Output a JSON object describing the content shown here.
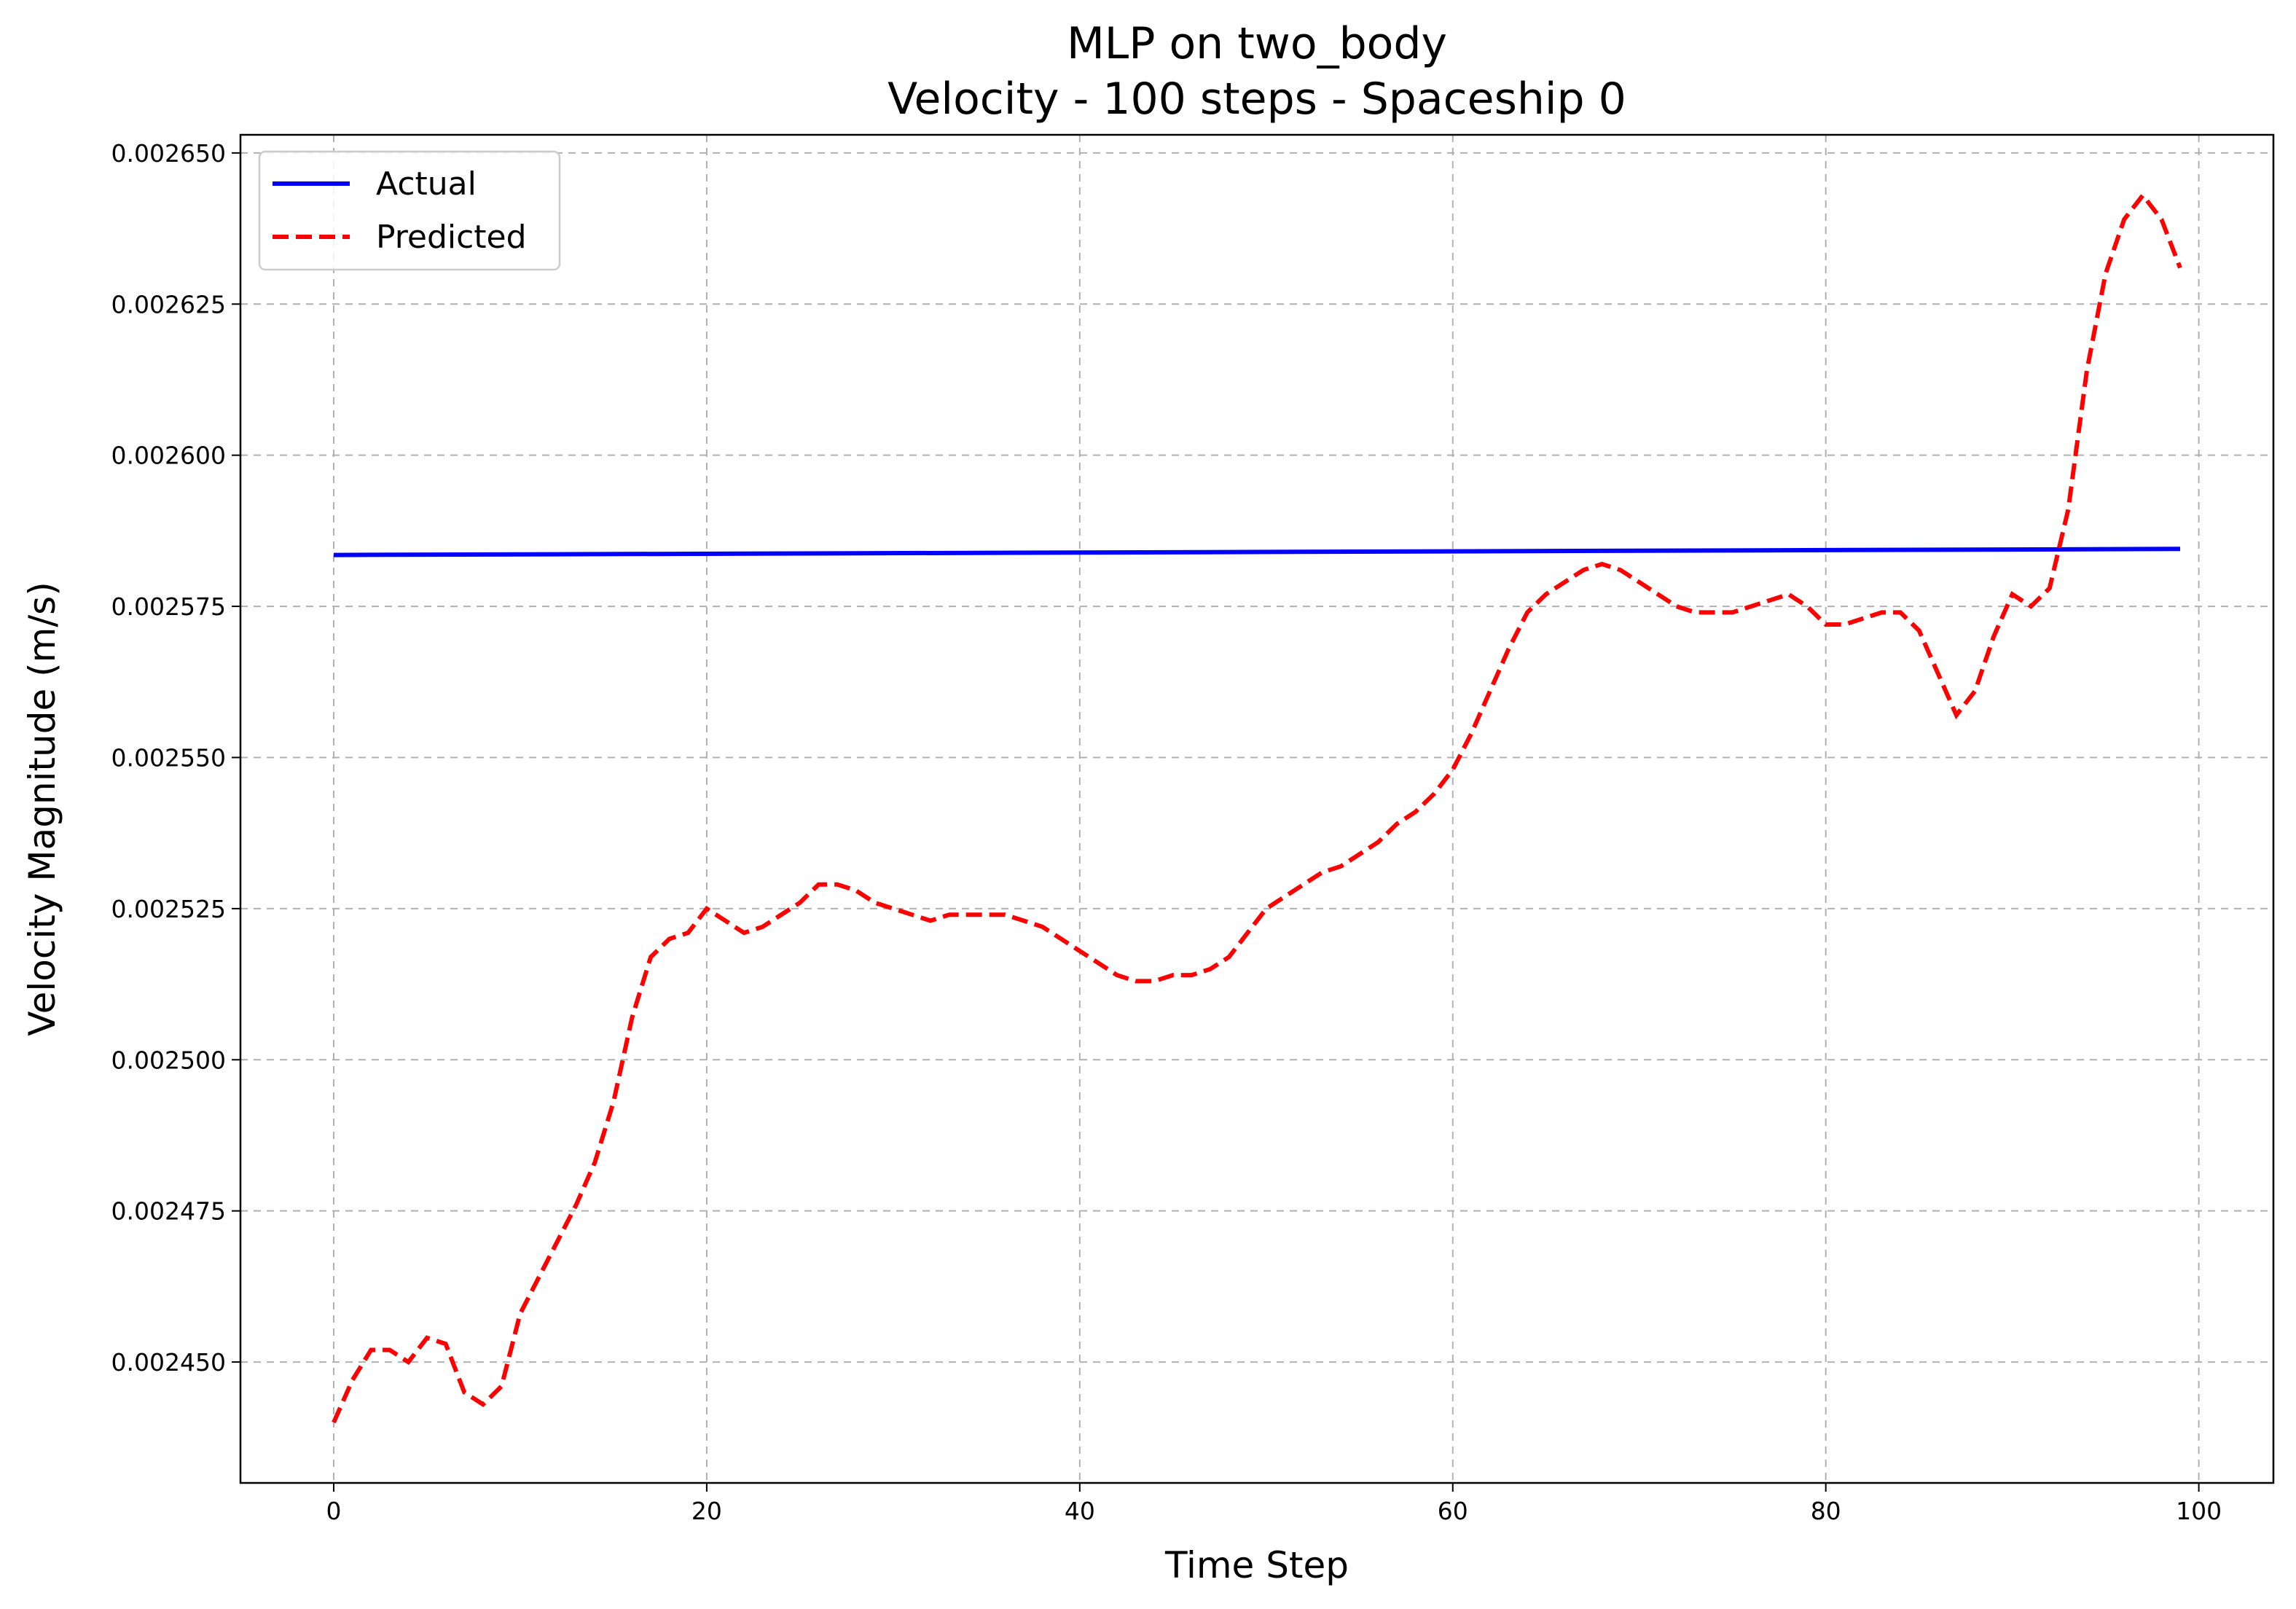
{
  "chart_data": {
    "type": "line",
    "title_lines": [
      "MLP on two_body",
      "Velocity - 100 steps - Spaceship 0"
    ],
    "xlabel": "Time Step",
    "ylabel": "Velocity Magnitude (m/s)",
    "xlim": [
      -5,
      104
    ],
    "ylim": [
      0.00243,
      0.002653
    ],
    "xticks": [
      0,
      20,
      40,
      60,
      80,
      100
    ],
    "xtick_labels": [
      "0",
      "20",
      "40",
      "60",
      "80",
      "100"
    ],
    "yticks": [
      0.00245,
      0.002475,
      0.0025,
      0.002525,
      0.00255,
      0.002575,
      0.0026,
      0.002625,
      0.00265
    ],
    "ytick_labels": [
      "0.002450",
      "0.002475",
      "0.002500",
      "0.002525",
      "0.002550",
      "0.002575",
      "0.002600",
      "0.002625",
      "0.002650"
    ],
    "grid": true,
    "legend_position": "top-left",
    "series": [
      {
        "name": "Actual",
        "color": "#0000ff",
        "style": "solid",
        "x": [
          0,
          99
        ],
        "y": [
          0.0025835,
          0.0025845
        ]
      },
      {
        "name": "Predicted",
        "color": "#ff0000",
        "style": "dashed",
        "x": [
          0,
          1,
          2,
          3,
          4,
          5,
          6,
          7,
          8,
          9,
          10,
          11,
          12,
          13,
          14,
          15,
          16,
          17,
          18,
          19,
          20,
          21,
          22,
          23,
          24,
          25,
          26,
          27,
          28,
          29,
          30,
          31,
          32,
          33,
          34,
          35,
          36,
          37,
          38,
          39,
          40,
          41,
          42,
          43,
          44,
          45,
          46,
          47,
          48,
          49,
          50,
          51,
          52,
          53,
          54,
          55,
          56,
          57,
          58,
          59,
          60,
          61,
          62,
          63,
          64,
          65,
          66,
          67,
          68,
          69,
          70,
          71,
          72,
          73,
          74,
          75,
          76,
          77,
          78,
          79,
          80,
          81,
          82,
          83,
          84,
          85,
          86,
          87,
          88,
          89,
          90,
          91,
          92,
          93,
          94,
          95,
          96,
          97,
          98,
          99
        ],
        "y": [
          0.00244,
          0.002447,
          0.002452,
          0.002452,
          0.00245,
          0.002454,
          0.002453,
          0.002445,
          0.002443,
          0.002446,
          0.002458,
          0.002464,
          0.00247,
          0.002476,
          0.002483,
          0.002493,
          0.002507,
          0.002517,
          0.00252,
          0.002521,
          0.002525,
          0.002523,
          0.002521,
          0.002522,
          0.002524,
          0.002526,
          0.002529,
          0.002529,
          0.002528,
          0.002526,
          0.002525,
          0.002524,
          0.002523,
          0.002524,
          0.002524,
          0.002524,
          0.002524,
          0.002523,
          0.002522,
          0.00252,
          0.002518,
          0.002516,
          0.002514,
          0.002513,
          0.002513,
          0.002514,
          0.002514,
          0.002515,
          0.002517,
          0.002521,
          0.002525,
          0.002527,
          0.002529,
          0.002531,
          0.002532,
          0.002534,
          0.002536,
          0.002539,
          0.002541,
          0.002544,
          0.002548,
          0.002554,
          0.002561,
          0.002568,
          0.002574,
          0.002577,
          0.002579,
          0.002581,
          0.002582,
          0.002581,
          0.002579,
          0.002577,
          0.002575,
          0.002574,
          0.002574,
          0.002574,
          0.002575,
          0.002576,
          0.002577,
          0.002575,
          0.002572,
          0.002572,
          0.002573,
          0.002574,
          0.002574,
          0.002571,
          0.002564,
          0.002557,
          0.002561,
          0.00257,
          0.002577,
          0.002575,
          0.002578,
          0.002591,
          0.002614,
          0.00263,
          0.002639,
          0.002643,
          0.002639,
          0.002631
        ]
      }
    ]
  }
}
